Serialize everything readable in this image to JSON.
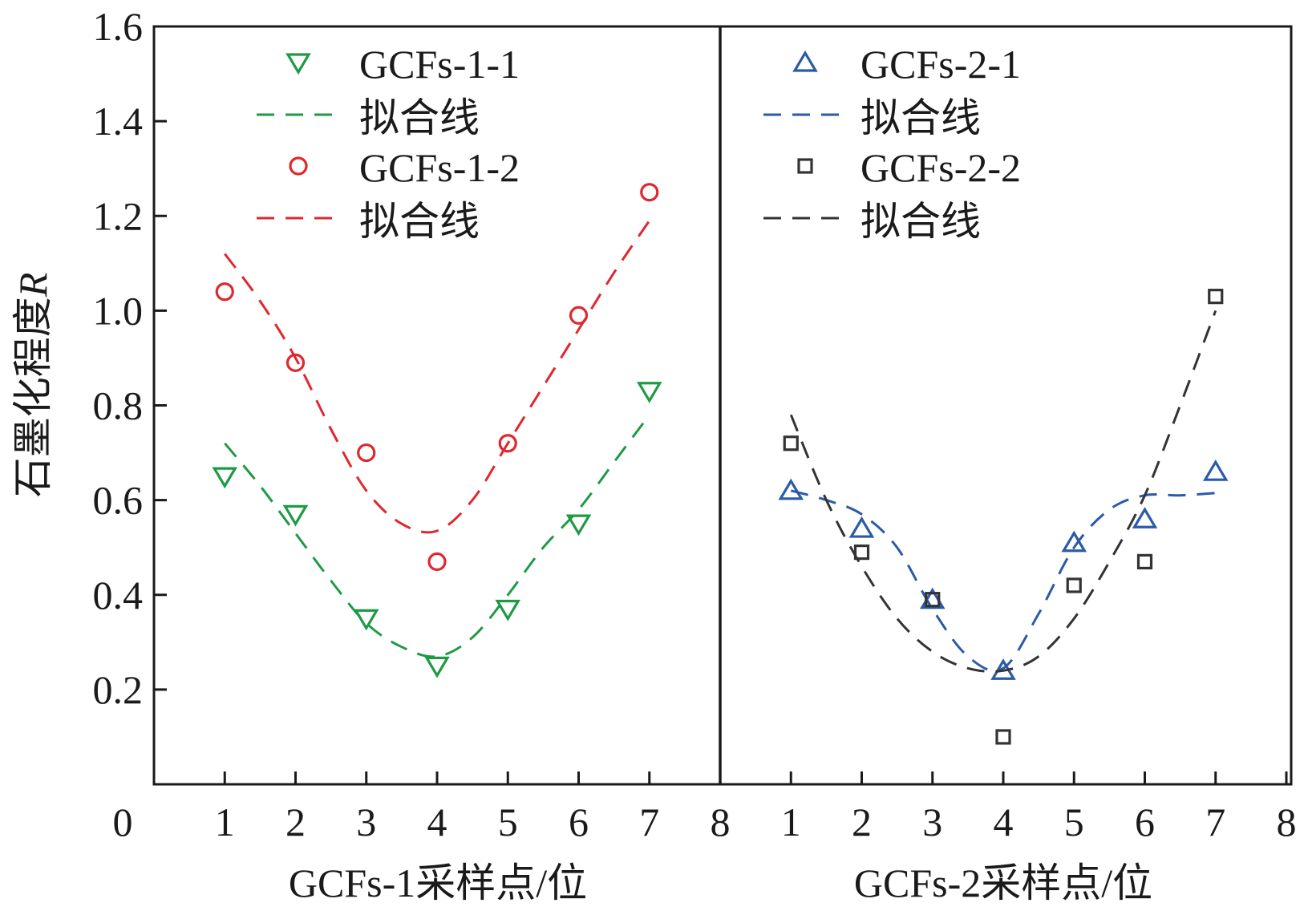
{
  "chart_data": {
    "type": "scatter",
    "ylabel_prefix": "石墨化程度",
    "ylabel_var": "R",
    "ylim": [
      0,
      1.6
    ],
    "yticks": [
      "0.2",
      "0.4",
      "0.6",
      "0.8",
      "1.0",
      "1.2",
      "1.4",
      "1.6"
    ],
    "ytick_values": [
      0.2,
      0.4,
      0.6,
      0.8,
      1.0,
      1.2,
      1.4,
      1.6
    ],
    "origin_label": "0",
    "divider_label": "8",
    "panels": [
      {
        "id": "left",
        "xlabel": "GCFs-1采样点/位",
        "xlim": [
          0,
          8
        ],
        "xticks": [
          "1",
          "2",
          "3",
          "4",
          "5",
          "6",
          "7"
        ],
        "xtick_values": [
          1,
          2,
          3,
          4,
          5,
          6,
          7
        ],
        "series": [
          {
            "name": "GCFs-1-1",
            "marker": "triangle-down",
            "color": "#1e9a45",
            "x": [
              1,
              2,
              3,
              4,
              5,
              6,
              7
            ],
            "values": [
              0.65,
              0.57,
              0.35,
              0.25,
              0.37,
              0.55,
              0.83
            ],
            "fit_label": "拟合线",
            "fit_x": [
              1,
              1.5,
              2,
              2.5,
              3,
              3.5,
              4,
              4.5,
              5,
              5.5,
              6,
              6.5,
              7
            ],
            "fit_values": [
              0.72,
              0.63,
              0.53,
              0.43,
              0.34,
              0.29,
              0.27,
              0.31,
              0.4,
              0.5,
              0.58,
              0.68,
              0.78
            ]
          },
          {
            "name": "GCFs-1-2",
            "marker": "circle",
            "color": "#e0272e",
            "x": [
              1,
              2,
              3,
              4,
              5,
              6,
              7
            ],
            "values": [
              1.04,
              0.89,
              0.7,
              0.47,
              0.72,
              0.99,
              1.25
            ],
            "fit_label": "拟合线",
            "fit_x": [
              1,
              1.5,
              2,
              2.5,
              3,
              3.5,
              4,
              4.5,
              5,
              5.5,
              6,
              6.5,
              7
            ],
            "fit_values": [
              1.12,
              1.02,
              0.9,
              0.75,
              0.62,
              0.55,
              0.535,
              0.6,
              0.72,
              0.84,
              0.96,
              1.08,
              1.19
            ]
          }
        ]
      },
      {
        "id": "right",
        "xlabel": "GCFs-2采样点/位",
        "xlim": [
          8,
          16
        ],
        "xticks": [
          "1",
          "2",
          "3",
          "4",
          "5",
          "6",
          "7",
          "8"
        ],
        "xtick_values": [
          9,
          10,
          11,
          12,
          13,
          14,
          15,
          16
        ],
        "series": [
          {
            "name": "GCFs-2-1",
            "marker": "triangle-up",
            "color": "#2b5ba8",
            "x": [
              9,
              10,
              11,
              12,
              13,
              14,
              15
            ],
            "values": [
              0.62,
              0.54,
              0.39,
              0.24,
              0.51,
              0.56,
              0.66
            ],
            "fit_label": "拟合线",
            "fit_x": [
              9,
              9.5,
              10,
              10.5,
              11,
              11.5,
              12,
              12.5,
              13,
              13.5,
              14,
              14.5,
              15
            ],
            "fit_values": [
              0.62,
              0.6,
              0.57,
              0.5,
              0.37,
              0.27,
              0.245,
              0.36,
              0.5,
              0.58,
              0.61,
              0.61,
              0.615
            ]
          },
          {
            "name": "GCFs-2-2",
            "marker": "square",
            "color": "#333333",
            "x": [
              9,
              10,
              11,
              12,
              13,
              14,
              15
            ],
            "values": [
              0.72,
              0.49,
              0.39,
              0.1,
              0.42,
              0.47,
              1.03
            ],
            "fit_label": "拟合线",
            "fit_x": [
              9,
              9.5,
              10,
              10.5,
              11,
              11.5,
              12,
              12.5,
              13,
              13.5,
              14,
              14.5,
              15
            ],
            "fit_values": [
              0.78,
              0.6,
              0.46,
              0.35,
              0.28,
              0.245,
              0.24,
              0.27,
              0.35,
              0.47,
              0.61,
              0.8,
              1.0
            ]
          }
        ]
      }
    ]
  }
}
